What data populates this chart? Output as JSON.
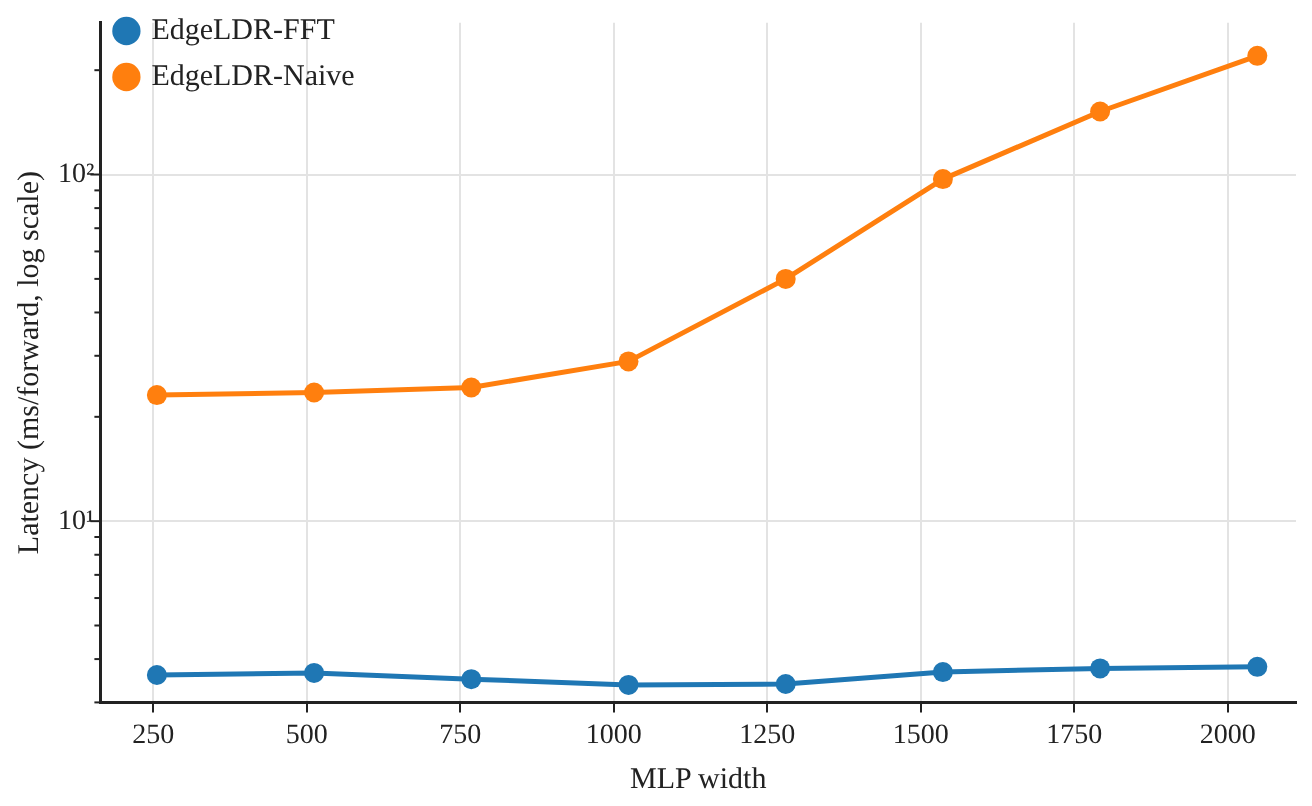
{
  "chart_data": {
    "type": "line",
    "xlabel": "MLP width",
    "ylabel": "Latency (ms/forward, log scale)",
    "x": [
      256,
      512,
      768,
      1024,
      1280,
      1536,
      1792,
      2048
    ],
    "series": [
      {
        "name": "EdgeLDR-FFT",
        "color": "#1f77b4",
        "values": [
          3.6,
          3.65,
          3.5,
          3.37,
          3.39,
          3.67,
          3.76,
          3.8
        ]
      },
      {
        "name": "EdgeLDR-Naive",
        "color": "#ff7f0e",
        "values": [
          23.1,
          23.5,
          24.3,
          28.9,
          50,
          97,
          152,
          220
        ]
      }
    ],
    "log": "y",
    "xlim": [
      164,
      2111
    ],
    "ylim": [
      3,
      274
    ],
    "xticks": [
      250,
      500,
      750,
      1000,
      1250,
      1500,
      1750,
      2000
    ],
    "yticks": [
      {
        "value": 3,
        "label": null
      },
      {
        "value": 4,
        "label": null
      },
      {
        "value": 5,
        "label": null
      },
      {
        "value": 6,
        "label": null
      },
      {
        "value": 7,
        "label": null
      },
      {
        "value": 8,
        "label": null
      },
      {
        "value": 9,
        "label": null
      },
      {
        "value": 10,
        "label": "10¹"
      },
      {
        "value": 20,
        "label": null
      },
      {
        "value": 30,
        "label": null
      },
      {
        "value": 40,
        "label": null
      },
      {
        "value": 50,
        "label": null
      },
      {
        "value": 60,
        "label": null
      },
      {
        "value": 70,
        "label": null
      },
      {
        "value": 80,
        "label": null
      },
      {
        "value": 90,
        "label": null
      },
      {
        "value": 100,
        "label": "10²"
      },
      {
        "value": 200,
        "label": null
      }
    ],
    "grid": true,
    "legend": "top left",
    "marker": "circle",
    "line_style": "solid"
  }
}
